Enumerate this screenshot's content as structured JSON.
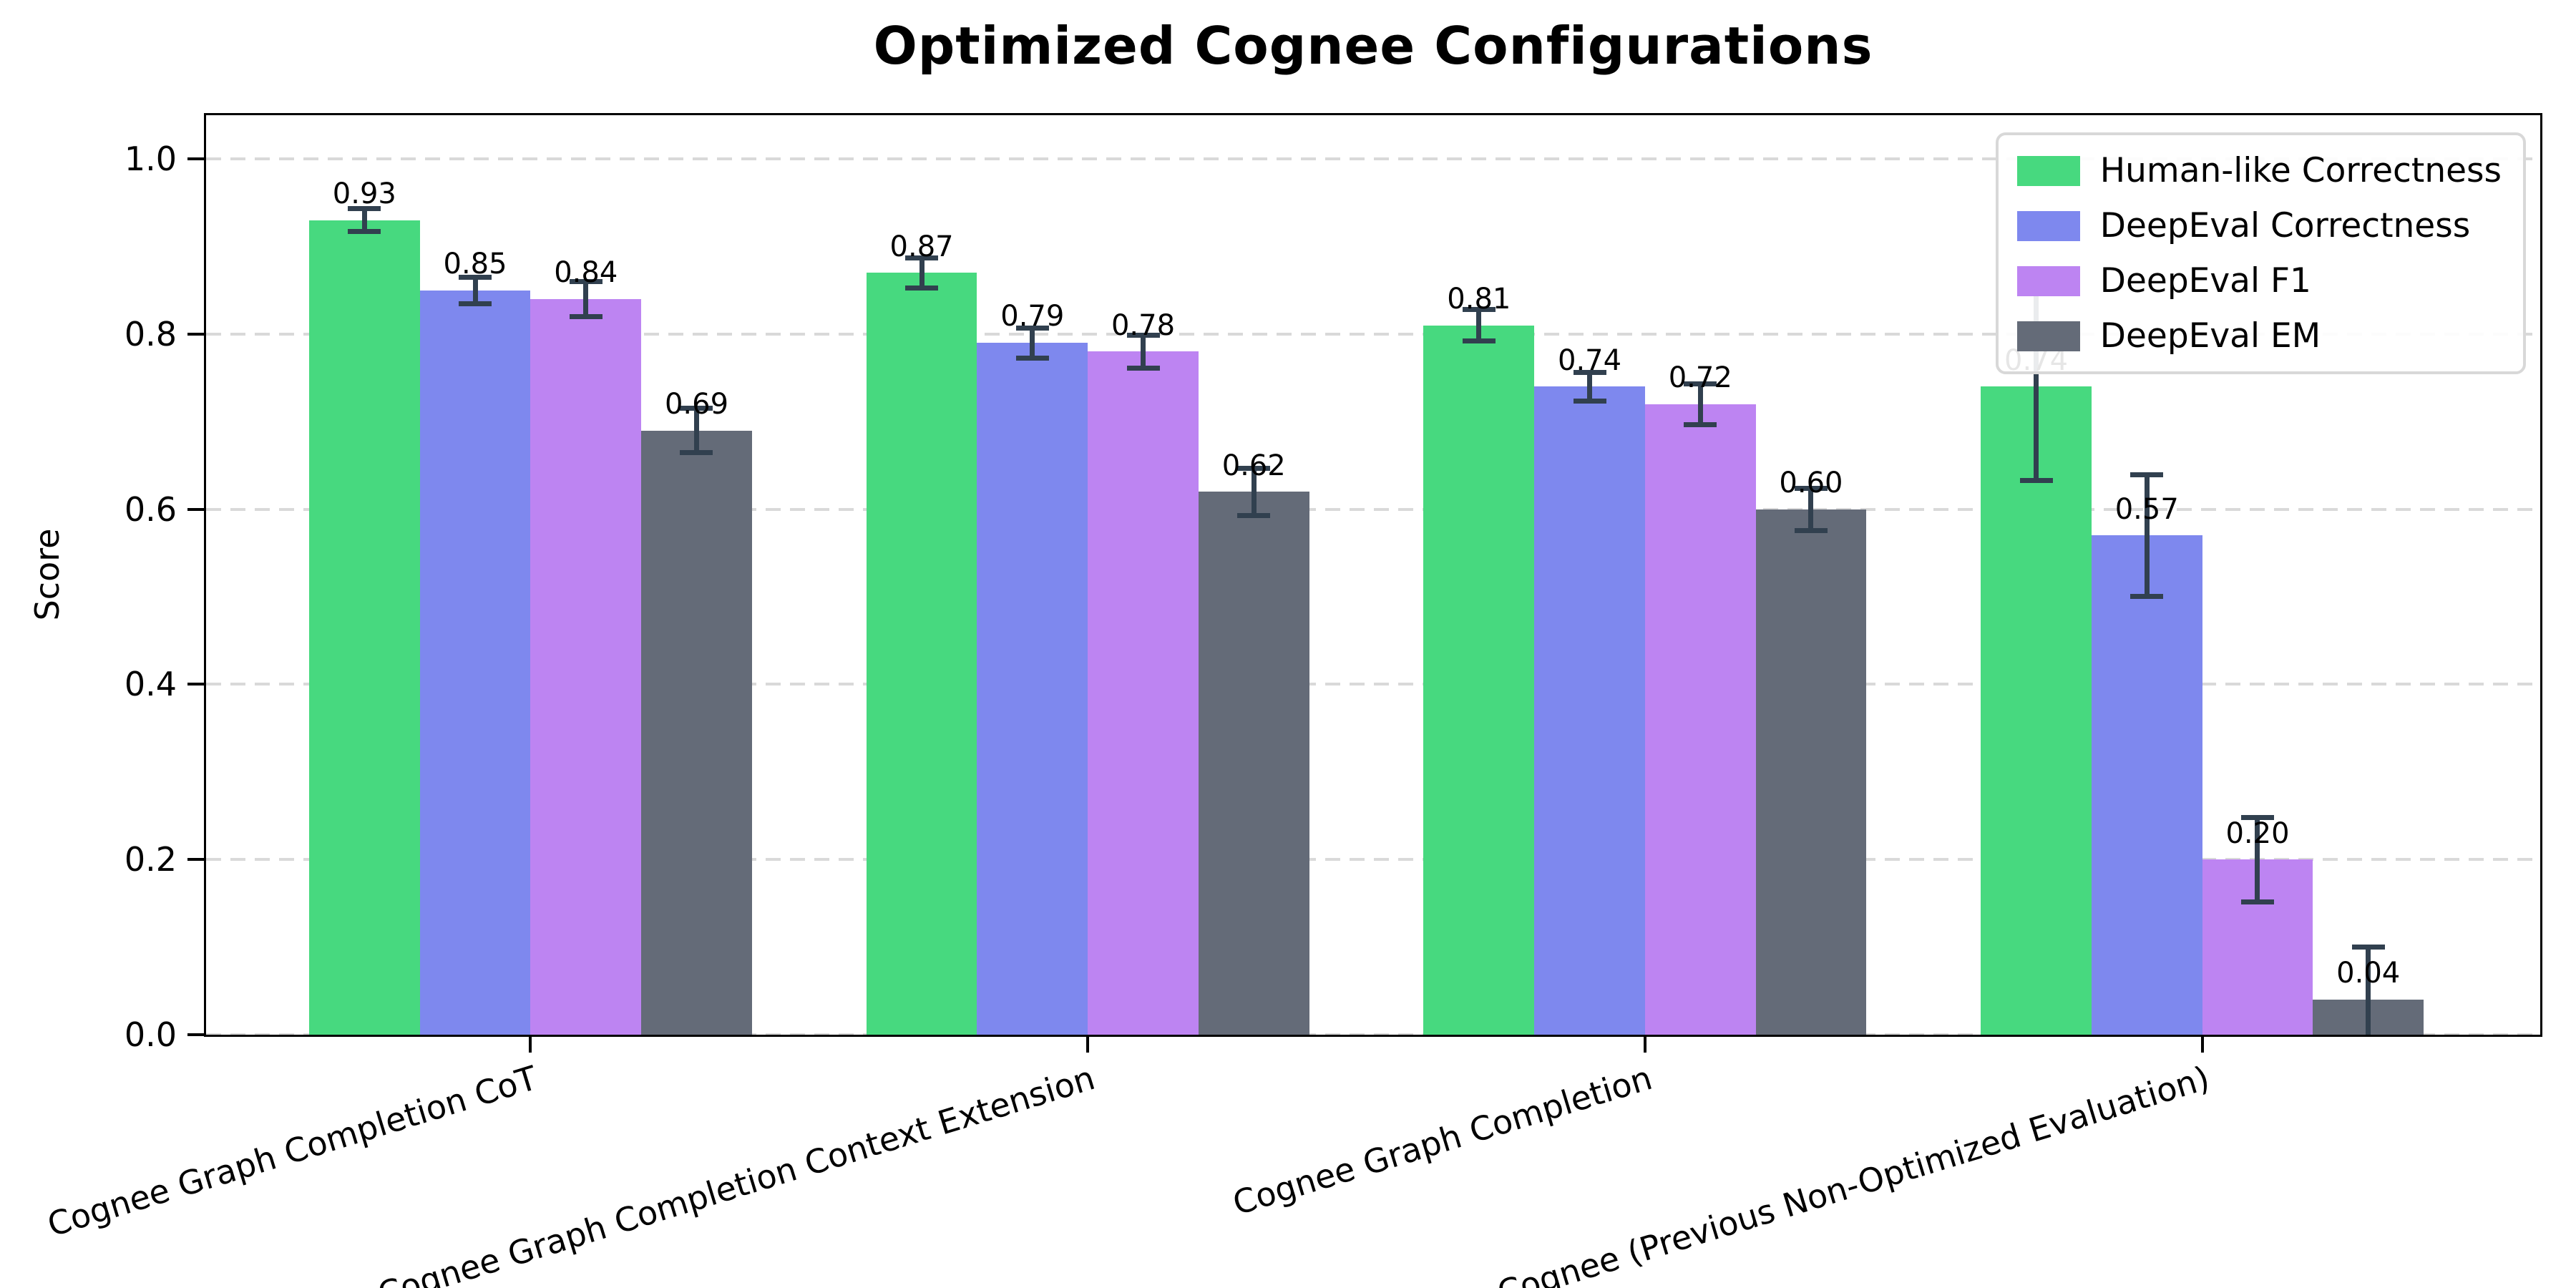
{
  "title": "Optimized Cognee Configurations",
  "chart_data": {
    "type": "bar",
    "title": "Optimized Cognee Configurations",
    "xlabel": "",
    "ylabel": "Score",
    "ylim": [
      0,
      1.05
    ],
    "yticks": [
      0.0,
      0.2,
      0.4,
      0.6,
      0.8,
      1.0
    ],
    "grid": "horizontal-dashed",
    "legend_position": "upper-right",
    "categories": [
      "Cognee Graph Completion CoT",
      "Cognee Graph Completion Context Extension",
      "Cognee Graph Completion",
      "Cognee (Previous Non-Optimized Evaluation)"
    ],
    "series": [
      {
        "name": "Human-like Correctness",
        "color": "#47d97f",
        "values": [
          0.93,
          0.87,
          0.81,
          0.74
        ],
        "errors": [
          0.016,
          0.02,
          0.021,
          0.11
        ]
      },
      {
        "name": "DeepEval Correctness",
        "color": "#7e88ee",
        "values": [
          0.85,
          0.79,
          0.74,
          0.57
        ],
        "errors": [
          0.018,
          0.02,
          0.019,
          0.072
        ]
      },
      {
        "name": "DeepEval F1",
        "color": "#bd84f2",
        "values": [
          0.84,
          0.78,
          0.72,
          0.2
        ],
        "errors": [
          0.023,
          0.022,
          0.026,
          0.051
        ]
      },
      {
        "name": "DeepEval EM",
        "color": "#646b78",
        "values": [
          0.69,
          0.62,
          0.6,
          0.04
        ],
        "errors": [
          0.028,
          0.03,
          0.027,
          0.063
        ]
      }
    ],
    "value_label_format": "0.00",
    "error_bar_color": "#31404f",
    "grid_color": "#d9d9d9"
  }
}
